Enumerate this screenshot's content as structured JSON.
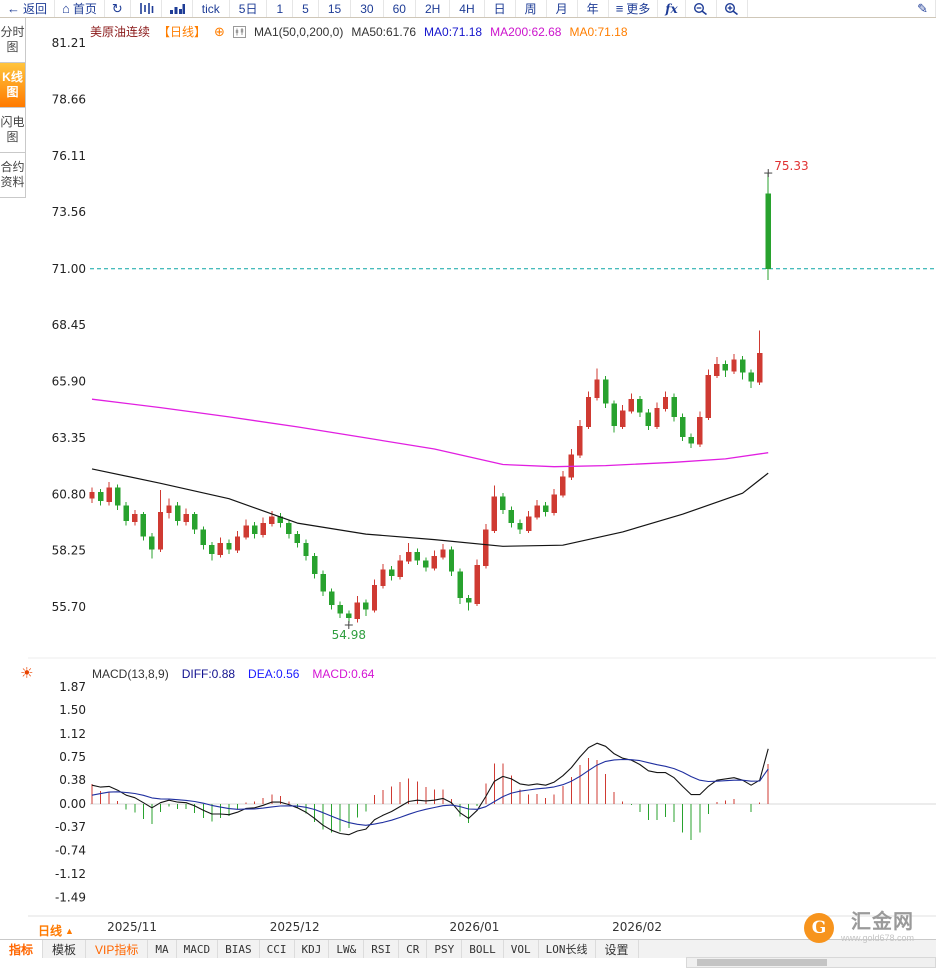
{
  "toolbar": {
    "items": [
      {
        "type": "button",
        "name": "back-button",
        "icon": "←",
        "label": "返回"
      },
      {
        "type": "button",
        "name": "home-button",
        "icon": "⌂",
        "label": "首页"
      },
      {
        "type": "icon-button",
        "name": "refresh-button",
        "icon": "↻"
      },
      {
        "type": "svg-button",
        "name": "kline-chart-button",
        "svg": "kline"
      },
      {
        "type": "svg-button",
        "name": "volume-chart-button",
        "svg": "volume"
      },
      {
        "type": "period",
        "name": "period-tick",
        "label": "tick"
      },
      {
        "type": "period",
        "name": "period-5d",
        "label": "5日"
      },
      {
        "type": "period",
        "name": "period-1",
        "label": "1"
      },
      {
        "type": "period",
        "name": "period-5",
        "label": "5"
      },
      {
        "type": "period",
        "name": "period-15",
        "label": "15"
      },
      {
        "type": "period",
        "name": "period-30",
        "label": "30"
      },
      {
        "type": "period",
        "name": "period-60",
        "label": "60"
      },
      {
        "type": "period",
        "name": "period-2h",
        "label": "2H"
      },
      {
        "type": "period",
        "name": "period-4h",
        "label": "4H"
      },
      {
        "type": "period",
        "name": "period-day",
        "label": "日"
      },
      {
        "type": "period",
        "name": "period-week",
        "label": "周"
      },
      {
        "type": "period",
        "name": "period-month",
        "label": "月"
      },
      {
        "type": "period",
        "name": "period-year",
        "label": "年"
      },
      {
        "type": "button",
        "name": "more-button",
        "icon": "≡",
        "label": "更多"
      },
      {
        "type": "fx",
        "name": "fx-button",
        "label": "fx"
      },
      {
        "type": "svg-button",
        "name": "zoom-out-button",
        "svg": "zoom-out"
      },
      {
        "type": "svg-button",
        "name": "zoom-in-button",
        "svg": "zoom-in"
      },
      {
        "type": "spacer"
      },
      {
        "type": "icon-button",
        "name": "draw-button",
        "icon": "✎"
      }
    ]
  },
  "sidebar": {
    "items": [
      {
        "label": "分时图",
        "name": "sidebar-item-time-chart",
        "active": false
      },
      {
        "label": "K线图",
        "name": "sidebar-item-kline-chart",
        "active": true
      },
      {
        "label": "闪电图",
        "name": "sidebar-item-lightning-chart",
        "active": false
      },
      {
        "label": "合约资料",
        "name": "sidebar-item-contract-info",
        "active": false
      }
    ]
  },
  "legend": {
    "symbol": "美原油连续",
    "period_tag": "【日线】",
    "ma_group": "MA1(50,0,200,0)",
    "ma50": "MA50:61.76",
    "ma0_blue": "MA0:71.18",
    "ma200": "MA200:62.68",
    "ma0_orange": "MA0:71.18"
  },
  "macd_legend": {
    "title": "MACD(13,8,9)",
    "diff": "DIFF:0.88",
    "dea": "DEA:0.56",
    "macd": "MACD:0.64"
  },
  "icons": {
    "circle_plus": "⊕",
    "sun": "☀",
    "triangle_up": "▲"
  },
  "bottom_bar": {
    "period_selector": "日线",
    "tabs": [
      {
        "label": "指标",
        "name": "tab-indicators",
        "accent": true,
        "active": true
      },
      {
        "label": "模板",
        "name": "tab-templates"
      },
      {
        "label": "VIP指标",
        "name": "tab-vip-indicators",
        "accent": true
      },
      {
        "label": "MA",
        "name": "tab-ma",
        "mono": true
      },
      {
        "label": "MACD",
        "name": "tab-macd",
        "mono": true
      },
      {
        "label": "BIAS",
        "name": "tab-bias",
        "mono": true
      },
      {
        "label": "CCI",
        "name": "tab-cci",
        "mono": true
      },
      {
        "label": "KDJ",
        "name": "tab-kdj",
        "mono": true
      },
      {
        "label": "LW&",
        "name": "tab-lw",
        "mono": true
      },
      {
        "label": "RSI",
        "name": "tab-rsi",
        "mono": true
      },
      {
        "label": "CR",
        "name": "tab-cr",
        "mono": true
      },
      {
        "label": "PSY",
        "name": "tab-psy",
        "mono": true
      },
      {
        "label": "BOLL",
        "name": "tab-boll",
        "mono": true
      },
      {
        "label": "VOL",
        "name": "tab-vol",
        "mono": true
      },
      {
        "label": "LON长线",
        "name": "tab-lon",
        "mono": true
      },
      {
        "label": "设置",
        "name": "tab-settings"
      }
    ]
  },
  "logo": {
    "mark": "G",
    "text": "汇金网",
    "url": "www.gold678.com"
  },
  "colors": {
    "up": "#cf3a32",
    "down": "#28a22e",
    "ma50": "#141414",
    "ma200": "#e11fe1",
    "diff_line": "#141414",
    "dea_line": "#2030a0",
    "dash": "#0ba5a5",
    "high_label": "#e03131",
    "low_label": "#2f9e3f",
    "axis_text": "#222222",
    "accent": "#ff7a00"
  },
  "chart_data": {
    "type": "candlestick_with_macd",
    "title": "美原油连续 日线",
    "current_price": 71.0,
    "y_axis_main": [
      81.21,
      78.66,
      76.11,
      73.56,
      71.0,
      68.45,
      65.9,
      63.35,
      60.8,
      58.25,
      55.7
    ],
    "y_axis_macd": [
      1.87,
      1.5,
      1.12,
      0.75,
      0.38,
      0.0,
      -0.37,
      -0.74,
      -1.12,
      -1.49
    ],
    "x_labels": [
      {
        "index": 2,
        "label": "2025/11"
      },
      {
        "index": 21,
        "label": "2025/12"
      },
      {
        "index": 42,
        "label": "2026/01"
      },
      {
        "index": 61,
        "label": "2026/02"
      }
    ],
    "annotations": {
      "high": {
        "index": 79,
        "price": 75.33,
        "label": "75.33"
      },
      "low": {
        "index": 30,
        "price": 54.98,
        "label": "54.98"
      }
    },
    "candles": [
      [
        60.6,
        61.1,
        60.4,
        60.9
      ],
      [
        60.9,
        61.05,
        60.3,
        60.5
      ],
      [
        60.45,
        61.35,
        60.3,
        61.1
      ],
      [
        61.1,
        61.25,
        60.1,
        60.3
      ],
      [
        60.3,
        60.45,
        59.4,
        59.6
      ],
      [
        59.55,
        60.1,
        59.4,
        59.9
      ],
      [
        59.9,
        60.0,
        58.7,
        58.9
      ],
      [
        58.9,
        59.05,
        57.9,
        58.3
      ],
      [
        58.3,
        61.0,
        58.2,
        60.0
      ],
      [
        59.95,
        60.6,
        59.7,
        60.3
      ],
      [
        60.3,
        60.45,
        59.4,
        59.6
      ],
      [
        59.55,
        60.15,
        59.4,
        59.9
      ],
      [
        59.9,
        60.0,
        59.0,
        59.2
      ],
      [
        59.2,
        59.35,
        58.3,
        58.5
      ],
      [
        58.5,
        58.65,
        57.8,
        58.1
      ],
      [
        58.05,
        58.85,
        57.95,
        58.6
      ],
      [
        58.6,
        58.75,
        58.1,
        58.3
      ],
      [
        58.25,
        59.15,
        58.15,
        58.9
      ],
      [
        58.85,
        59.65,
        58.75,
        59.4
      ],
      [
        59.4,
        59.55,
        58.8,
        59.0
      ],
      [
        58.95,
        59.75,
        58.85,
        59.5
      ],
      [
        59.45,
        60.05,
        59.35,
        59.8
      ],
      [
        59.8,
        59.95,
        59.3,
        59.5
      ],
      [
        59.5,
        59.65,
        58.8,
        59.0
      ],
      [
        59.0,
        59.15,
        58.4,
        58.6
      ],
      [
        58.6,
        58.75,
        57.8,
        58.0
      ],
      [
        58.0,
        58.15,
        57.0,
        57.2
      ],
      [
        57.2,
        57.35,
        56.2,
        56.4
      ],
      [
        56.4,
        56.55,
        55.6,
        55.8
      ],
      [
        55.8,
        55.95,
        55.2,
        55.4
      ],
      [
        55.4,
        55.55,
        54.98,
        55.2
      ],
      [
        55.15,
        56.2,
        55.0,
        55.9
      ],
      [
        55.9,
        56.05,
        55.3,
        55.6
      ],
      [
        55.55,
        56.95,
        55.45,
        56.7
      ],
      [
        56.65,
        57.65,
        56.55,
        57.4
      ],
      [
        57.4,
        57.55,
        56.9,
        57.1
      ],
      [
        57.05,
        58.05,
        56.95,
        57.8
      ],
      [
        57.75,
        58.6,
        57.65,
        58.2
      ],
      [
        58.2,
        58.35,
        57.6,
        57.8
      ],
      [
        57.8,
        57.95,
        57.3,
        57.5
      ],
      [
        57.45,
        58.25,
        57.35,
        58.0
      ],
      [
        57.95,
        58.55,
        57.85,
        58.3
      ],
      [
        58.3,
        58.45,
        57.1,
        57.3
      ],
      [
        57.3,
        57.45,
        55.85,
        56.1
      ],
      [
        56.1,
        56.25,
        55.55,
        55.9
      ],
      [
        55.85,
        57.85,
        55.75,
        57.6
      ],
      [
        57.55,
        59.45,
        57.45,
        59.2
      ],
      [
        59.15,
        61.2,
        59.05,
        60.7
      ],
      [
        60.7,
        60.85,
        59.9,
        60.1
      ],
      [
        60.1,
        60.25,
        59.3,
        59.5
      ],
      [
        59.5,
        59.65,
        59.0,
        59.2
      ],
      [
        59.15,
        60.05,
        59.05,
        59.8
      ],
      [
        59.75,
        60.55,
        59.65,
        60.3
      ],
      [
        60.3,
        60.45,
        59.8,
        60.0
      ],
      [
        59.95,
        61.05,
        59.85,
        60.8
      ],
      [
        60.75,
        61.85,
        60.65,
        61.6
      ],
      [
        61.55,
        62.85,
        61.45,
        62.6
      ],
      [
        62.55,
        64.15,
        62.45,
        63.9
      ],
      [
        63.85,
        65.45,
        63.75,
        65.2
      ],
      [
        65.15,
        66.5,
        65.05,
        66.0
      ],
      [
        66.0,
        66.15,
        64.7,
        64.9
      ],
      [
        64.9,
        65.05,
        63.6,
        63.9
      ],
      [
        63.85,
        64.85,
        63.75,
        64.6
      ],
      [
        64.55,
        65.35,
        64.45,
        65.1
      ],
      [
        65.1,
        65.25,
        64.3,
        64.5
      ],
      [
        64.5,
        64.65,
        63.7,
        63.9
      ],
      [
        63.85,
        64.95,
        63.75,
        64.7
      ],
      [
        64.65,
        65.45,
        64.55,
        65.2
      ],
      [
        65.2,
        65.35,
        64.1,
        64.3
      ],
      [
        64.3,
        64.45,
        63.2,
        63.4
      ],
      [
        63.4,
        63.55,
        62.9,
        63.1
      ],
      [
        63.05,
        64.55,
        62.95,
        64.3
      ],
      [
        64.25,
        66.45,
        64.15,
        66.2
      ],
      [
        66.15,
        67.0,
        66.05,
        66.7
      ],
      [
        66.7,
        66.85,
        66.1,
        66.4
      ],
      [
        66.35,
        67.15,
        66.25,
        66.9
      ],
      [
        66.9,
        67.05,
        66.0,
        66.3
      ],
      [
        66.3,
        66.45,
        65.6,
        65.9
      ],
      [
        65.85,
        68.2,
        65.75,
        67.2
      ],
      [
        74.4,
        75.33,
        70.5,
        71.0
      ]
    ],
    "ma50": [
      [
        0,
        61.95
      ],
      [
        8,
        61.3
      ],
      [
        16,
        60.6
      ],
      [
        24,
        59.5
      ],
      [
        32,
        59.0
      ],
      [
        40,
        58.75
      ],
      [
        48,
        58.45
      ],
      [
        55,
        58.5
      ],
      [
        62,
        59.1
      ],
      [
        69,
        59.9
      ],
      [
        76,
        60.85
      ],
      [
        79,
        61.76
      ]
    ],
    "ma200": [
      [
        0,
        65.1
      ],
      [
        8,
        64.72
      ],
      [
        16,
        64.3
      ],
      [
        24,
        63.85
      ],
      [
        32,
        63.35
      ],
      [
        40,
        62.85
      ],
      [
        48,
        62.15
      ],
      [
        54,
        62.05
      ],
      [
        60,
        62.1
      ],
      [
        68,
        62.25
      ],
      [
        74,
        62.4
      ],
      [
        79,
        62.68
      ]
    ],
    "macd": {
      "diff": [
        0.3,
        0.27,
        0.28,
        0.22,
        0.14,
        0.1,
        0.02,
        -0.06,
        0.02,
        0.06,
        0.03,
        0.02,
        -0.03,
        -0.1,
        -0.16,
        -0.16,
        -0.17,
        -0.13,
        -0.07,
        -0.06,
        -0.02,
        0.03,
        0.03,
        -0.01,
        -0.06,
        -0.13,
        -0.23,
        -0.34,
        -0.42,
        -0.47,
        -0.49,
        -0.43,
        -0.4,
        -0.25,
        -0.18,
        -0.12,
        -0.04,
        0.04,
        0.06,
        0.05,
        0.06,
        0.09,
        0.02,
        -0.14,
        -0.23,
        -0.1,
        0.12,
        0.36,
        0.44,
        0.4,
        0.32,
        0.3,
        0.32,
        0.3,
        0.35,
        0.45,
        0.58,
        0.75,
        0.9,
        0.97,
        0.92,
        0.8,
        0.73,
        0.7,
        0.63,
        0.53,
        0.5,
        0.5,
        0.42,
        0.28,
        0.15,
        0.15,
        0.28,
        0.38,
        0.4,
        0.42,
        0.38,
        0.3,
        0.38,
        0.88
      ],
      "dea": [
        0.14,
        0.166,
        0.189,
        0.195,
        0.184,
        0.167,
        0.138,
        0.098,
        0.082,
        0.078,
        0.068,
        0.058,
        0.04,
        0.012,
        -0.022,
        -0.05,
        -0.074,
        -0.085,
        -0.082,
        -0.078,
        -0.066,
        -0.047,
        -0.032,
        -0.028,
        -0.034,
        -0.053,
        -0.088,
        -0.138,
        -0.194,
        -0.249,
        -0.297,
        -0.324,
        -0.339,
        -0.321,
        -0.293,
        -0.258,
        -0.214,
        -0.164,
        -0.119,
        -0.085,
        -0.056,
        -0.027,
        -0.018,
        -0.042,
        -0.08,
        -0.084,
        -0.043,
        0.038,
        0.118,
        0.174,
        0.204,
        0.223,
        0.242,
        0.254,
        0.273,
        0.308,
        0.363,
        0.44,
        0.532,
        0.62,
        0.68,
        0.704,
        0.709,
        0.707,
        0.692,
        0.659,
        0.627,
        0.602,
        0.565,
        0.508,
        0.437,
        0.379,
        0.359,
        0.364,
        0.371,
        0.38,
        0.38,
        0.364,
        0.367,
        0.56
      ]
    }
  }
}
